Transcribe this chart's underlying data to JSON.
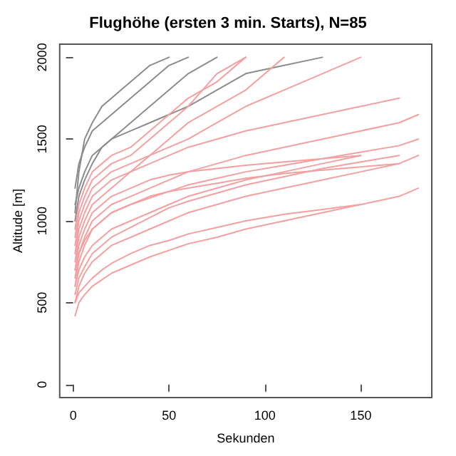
{
  "chart_data": {
    "type": "line",
    "title": "Flughöhe (ersten 3 min. Starts), N=85",
    "xlabel": "Sekunden",
    "ylabel": "Altitude [m]",
    "x": [
      1,
      3,
      6,
      10,
      15,
      20,
      30,
      40,
      50,
      60,
      75,
      90,
      110,
      130,
      150,
      170,
      180
    ],
    "xlim": [
      -7,
      187
    ],
    "xticks": [
      0,
      50,
      100,
      150
    ],
    "ylim": [
      -80,
      2080
    ],
    "yticks": [
      0,
      500,
      1000,
      1500,
      2000
    ],
    "grid": false,
    "marker": "none",
    "series": [
      {
        "color": "#8c8c8c",
        "values": [
          1050,
          1300,
          1500,
          1600,
          1700,
          1750,
          1850,
          1950,
          2000,
          null,
          null,
          null,
          null,
          null,
          null,
          null,
          null
        ]
      },
      {
        "color": "#8c8c8c",
        "values": [
          1000,
          1150,
          1250,
          1350,
          1450,
          1500,
          1600,
          1700,
          1800,
          1900,
          2000,
          null,
          null,
          null,
          null,
          null,
          null
        ]
      },
      {
        "color": "#8c8c8c",
        "values": [
          1100,
          1200,
          1300,
          1400,
          1450,
          1500,
          1550,
          1600,
          1650,
          1700,
          1800,
          1900,
          1950,
          2000,
          null,
          null,
          null
        ]
      },
      {
        "color": "#8c8c8c",
        "values": [
          1200,
          1350,
          1450,
          1550,
          1600,
          1650,
          1750,
          1850,
          1950,
          2000,
          null,
          null,
          null,
          null,
          null,
          null,
          null
        ]
      },
      {
        "color": "#f4a0a0",
        "values": [
          700,
          850,
          950,
          1050,
          1100,
          1150,
          1200,
          1250,
          1280,
          1300,
          1320,
          1340,
          1360,
          1380,
          1400,
          null,
          null
        ]
      },
      {
        "color": "#f4a0a0",
        "values": [
          600,
          750,
          850,
          950,
          1000,
          1050,
          1100,
          1150,
          1180,
          1200,
          1230,
          1260,
          1290,
          1310,
          1330,
          1350,
          null
        ]
      },
      {
        "color": "#f4a0a0",
        "values": [
          500,
          560,
          600,
          650,
          700,
          740,
          800,
          850,
          880,
          920,
          960,
          1000,
          1040,
          1070,
          1100,
          null,
          null
        ]
      },
      {
        "color": "#f4a0a0",
        "values": [
          420,
          500,
          550,
          600,
          640,
          680,
          730,
          780,
          820,
          860,
          900,
          950,
          1000,
          1050,
          1100,
          1150,
          1200
        ]
      },
      {
        "color": "#f4a0a0",
        "values": [
          800,
          950,
          1050,
          1150,
          1200,
          1250,
          1300,
          1350,
          1400,
          1450,
          1500,
          1550,
          1600,
          1650,
          1700,
          1750,
          null
        ]
      },
      {
        "color": "#f4a0a0",
        "values": [
          900,
          1050,
          1150,
          1250,
          1300,
          1350,
          1400,
          1500,
          1600,
          1700,
          1900,
          2000,
          null,
          null,
          null,
          null,
          null
        ]
      },
      {
        "color": "#f4a0a0",
        "values": [
          750,
          900,
          1000,
          1100,
          1150,
          1200,
          1300,
          1400,
          1500,
          1600,
          1700,
          1800,
          2000,
          null,
          null,
          null,
          null
        ]
      },
      {
        "color": "#f4a0a0",
        "values": [
          650,
          800,
          900,
          1000,
          1050,
          1100,
          1150,
          1200,
          1250,
          1300,
          1350,
          1400,
          1450,
          1500,
          1550,
          1600,
          1650
        ]
      },
      {
        "color": "#f4a0a0",
        "values": [
          550,
          650,
          720,
          800,
          850,
          900,
          960,
          1020,
          1080,
          1120,
          1170,
          1220,
          1270,
          1320,
          1360,
          1400,
          null
        ]
      },
      {
        "color": "#f4a0a0",
        "values": [
          850,
          1000,
          1100,
          1200,
          1250,
          1300,
          1350,
          1400,
          1450,
          1500,
          1600,
          1700,
          1800,
          1900,
          2000,
          null,
          null
        ]
      },
      {
        "color": "#f4a0a0",
        "values": [
          700,
          800,
          880,
          950,
          1000,
          1050,
          1100,
          1140,
          1180,
          1220,
          1260,
          1300,
          1340,
          1380,
          1420,
          1460,
          1500
        ]
      },
      {
        "color": "#f4a0a0",
        "values": [
          600,
          700,
          780,
          850,
          900,
          950,
          1000,
          1050,
          1100,
          1150,
          1200,
          1250,
          1300,
          1350,
          1400,
          null,
          null
        ]
      },
      {
        "color": "#f4a0a0",
        "values": [
          950,
          1100,
          1200,
          1300,
          1350,
          1400,
          1450,
          1550,
          1650,
          1750,
          1850,
          2000,
          null,
          null,
          null,
          null,
          null
        ]
      },
      {
        "color": "#f4a0a0",
        "values": [
          500,
          600,
          680,
          750,
          800,
          850,
          900,
          950,
          1000,
          1050,
          1100,
          1150,
          1200,
          1250,
          1300,
          1350,
          1400
        ]
      }
    ]
  }
}
